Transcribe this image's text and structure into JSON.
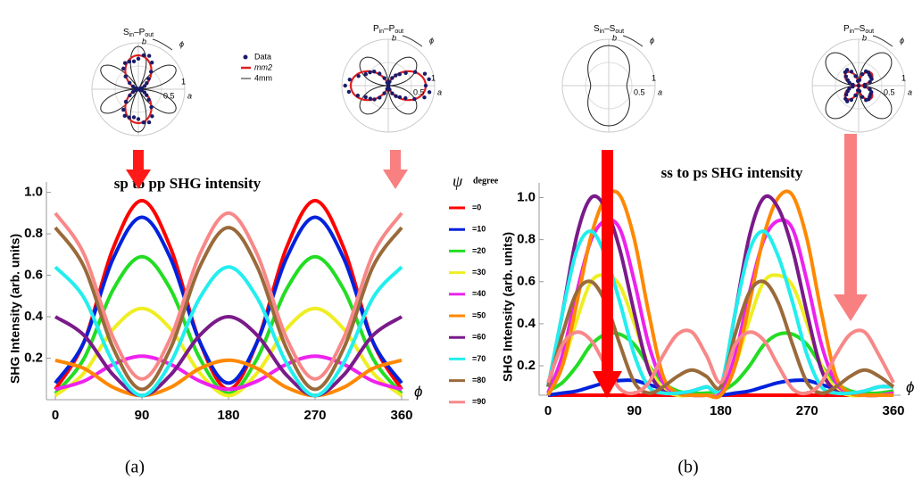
{
  "chart_data": [
    {
      "type": "line",
      "title": "sp to pp SHG intensity",
      "y_label": "SHG Intensity  (arb. units)",
      "x_label": "ϕ",
      "panel_label": "(a)",
      "legend_title": "ψ",
      "legend_unit": "degree",
      "x": [
        0,
        30,
        60,
        90,
        120,
        150,
        180,
        210,
        240,
        270,
        300,
        330,
        360
      ],
      "xlim": [
        0,
        360
      ],
      "xticks": [
        0,
        90,
        180,
        270,
        360
      ],
      "ylim": [
        0,
        1.05
      ],
      "yticks": [
        0.2,
        0.4,
        0.6,
        0.8,
        {
          "value": 1.0,
          "label": "1.0"
        }
      ],
      "series": [
        {
          "name": "=0",
          "color": "#ff0000",
          "values": [
            0.05,
            0.28,
            0.73,
            0.96,
            0.73,
            0.28,
            0.05,
            0.28,
            0.73,
            0.96,
            0.73,
            0.28,
            0.05
          ]
        },
        {
          "name": "=10",
          "color": "#0022dd",
          "values": [
            0.08,
            0.28,
            0.68,
            0.88,
            0.68,
            0.28,
            0.08,
            0.28,
            0.68,
            0.88,
            0.68,
            0.28,
            0.08
          ]
        },
        {
          "name": "=20",
          "color": "#22dd22",
          "values": [
            0.03,
            0.2,
            0.53,
            0.69,
            0.53,
            0.2,
            0.03,
            0.2,
            0.53,
            0.69,
            0.53,
            0.2,
            0.03
          ]
        },
        {
          "name": "=30",
          "color": "#eeee22",
          "values": [
            0.02,
            0.13,
            0.34,
            0.44,
            0.34,
            0.13,
            0.02,
            0.13,
            0.34,
            0.44,
            0.34,
            0.13,
            0.02
          ]
        },
        {
          "name": "=40",
          "color": "#ee22ee",
          "values": [
            0.05,
            0.09,
            0.17,
            0.21,
            0.17,
            0.09,
            0.05,
            0.09,
            0.17,
            0.21,
            0.17,
            0.09,
            0.05
          ]
        },
        {
          "name": "=50",
          "color": "#ff8800",
          "values": [
            0.19,
            0.15,
            0.06,
            0.02,
            0.06,
            0.15,
            0.19,
            0.15,
            0.06,
            0.02,
            0.06,
            0.15,
            0.19
          ]
        },
        {
          "name": "=60",
          "color": "#7a1a8a",
          "values": [
            0.4,
            0.31,
            0.12,
            0.02,
            0.12,
            0.31,
            0.4,
            0.31,
            0.12,
            0.02,
            0.12,
            0.31,
            0.4
          ]
        },
        {
          "name": "=70",
          "color": "#22eeee",
          "values": [
            0.64,
            0.49,
            0.18,
            0.02,
            0.18,
            0.49,
            0.64,
            0.49,
            0.18,
            0.02,
            0.18,
            0.49,
            0.64
          ]
        },
        {
          "name": "=80",
          "color": "#9a6a3a",
          "values": [
            0.83,
            0.64,
            0.25,
            0.05,
            0.25,
            0.64,
            0.83,
            0.64,
            0.25,
            0.05,
            0.25,
            0.64,
            0.83
          ]
        },
        {
          "name": "=90",
          "color": "#f88888",
          "values": [
            0.9,
            0.7,
            0.3,
            0.1,
            0.3,
            0.7,
            0.9,
            0.7,
            0.3,
            0.1,
            0.3,
            0.7,
            0.9
          ]
        }
      ]
    },
    {
      "type": "line",
      "title": "ss to ps SHG intensity",
      "y_label": "SHG Intensity  (arb. units)",
      "x_label": "ϕ",
      "panel_label": "(b)",
      "x": [
        0,
        15,
        30,
        45,
        60,
        75,
        90,
        105,
        120,
        135,
        150,
        165,
        180,
        195,
        210,
        225,
        240,
        255,
        270,
        285,
        300,
        315,
        330,
        345,
        360
      ],
      "xlim": [
        0,
        360
      ],
      "xticks": [
        0,
        90,
        180,
        270,
        360
      ],
      "ylim": [
        0.06,
        1.07
      ],
      "yticks": [
        0.2,
        0.4,
        0.6,
        0.8,
        {
          "value": 1.0,
          "label": "1.0"
        }
      ],
      "series": [
        {
          "color": "#ff0000",
          "values": [
            0.06,
            0.06,
            0.06,
            0.06,
            0.06,
            0.06,
            0.06,
            0.06,
            0.06,
            0.06,
            0.06,
            0.06,
            0.06,
            0.06,
            0.06,
            0.06,
            0.06,
            0.06,
            0.06,
            0.06,
            0.06,
            0.06,
            0.06,
            0.06,
            0.06
          ]
        },
        {
          "color": "#0022dd",
          "values": [
            0.06,
            0.07,
            0.08,
            0.1,
            0.12,
            0.13,
            0.13,
            0.11,
            0.09,
            0.07,
            0.06,
            0.06,
            0.06,
            0.07,
            0.08,
            0.1,
            0.12,
            0.13,
            0.13,
            0.11,
            0.09,
            0.07,
            0.06,
            0.06,
            0.06
          ]
        },
        {
          "color": "#22dd22",
          "values": [
            0.08,
            0.12,
            0.2,
            0.3,
            0.35,
            0.35,
            0.3,
            0.2,
            0.12,
            0.08,
            0.07,
            0.07,
            0.08,
            0.12,
            0.2,
            0.3,
            0.35,
            0.35,
            0.3,
            0.2,
            0.12,
            0.08,
            0.07,
            0.07,
            0.08
          ]
        },
        {
          "color": "#eeee22",
          "values": [
            0.07,
            0.2,
            0.42,
            0.6,
            0.63,
            0.58,
            0.4,
            0.2,
            0.09,
            0.06,
            0.06,
            0.06,
            0.07,
            0.2,
            0.42,
            0.6,
            0.63,
            0.58,
            0.4,
            0.2,
            0.09,
            0.06,
            0.06,
            0.06,
            0.07
          ]
        },
        {
          "color": "#ee22ee",
          "values": [
            0.07,
            0.25,
            0.55,
            0.8,
            0.89,
            0.85,
            0.6,
            0.3,
            0.12,
            0.07,
            0.06,
            0.06,
            0.07,
            0.25,
            0.55,
            0.8,
            0.89,
            0.85,
            0.6,
            0.3,
            0.12,
            0.07,
            0.06,
            0.06,
            0.07
          ]
        },
        {
          "color": "#ff8800",
          "values": [
            0.06,
            0.2,
            0.5,
            0.82,
            1.0,
            1.01,
            0.8,
            0.45,
            0.15,
            0.07,
            0.06,
            0.06,
            0.06,
            0.2,
            0.5,
            0.82,
            1.0,
            1.01,
            0.8,
            0.45,
            0.15,
            0.07,
            0.06,
            0.06,
            0.06
          ]
        },
        {
          "color": "#7a1a8a",
          "values": [
            0.1,
            0.45,
            0.82,
            1.0,
            0.95,
            0.75,
            0.45,
            0.18,
            0.08,
            0.07,
            0.08,
            0.1,
            0.1,
            0.45,
            0.82,
            1.0,
            0.95,
            0.75,
            0.45,
            0.18,
            0.08,
            0.07,
            0.08,
            0.1,
            0.1
          ]
        },
        {
          "color": "#22eeee",
          "values": [
            0.1,
            0.45,
            0.75,
            0.84,
            0.72,
            0.5,
            0.25,
            0.1,
            0.07,
            0.07,
            0.08,
            0.1,
            0.1,
            0.45,
            0.75,
            0.84,
            0.72,
            0.5,
            0.25,
            0.1,
            0.07,
            0.07,
            0.08,
            0.1,
            0.1
          ]
        },
        {
          "color": "#9a6a3a",
          "values": [
            0.1,
            0.35,
            0.55,
            0.6,
            0.5,
            0.3,
            0.12,
            0.07,
            0.1,
            0.15,
            0.18,
            0.15,
            0.1,
            0.35,
            0.55,
            0.6,
            0.5,
            0.3,
            0.12,
            0.07,
            0.1,
            0.15,
            0.18,
            0.15,
            0.1
          ]
        },
        {
          "color": "#f88888",
          "values": [
            0.12,
            0.3,
            0.36,
            0.32,
            0.2,
            0.09,
            0.07,
            0.12,
            0.25,
            0.35,
            0.36,
            0.25,
            0.12,
            0.3,
            0.36,
            0.32,
            0.2,
            0.09,
            0.07,
            0.12,
            0.25,
            0.35,
            0.36,
            0.25,
            0.12
          ]
        }
      ]
    }
  ],
  "insets": [
    {
      "title": [
        "S",
        "in",
        "–P",
        "out"
      ],
      "b": "b",
      "a": "a",
      "phi": "ϕ",
      "one": "1",
      "half": "0.5",
      "legend": {
        "data": "Data",
        "mm2": "mm2",
        "4mm": "4mm"
      }
    },
    {
      "title": [
        "P",
        "in",
        "–P",
        "out"
      ],
      "b": "b",
      "a": "a",
      "phi": "ϕ",
      "one": "1",
      "half": "0.5"
    },
    {
      "title": [
        "S",
        "in",
        "–S",
        "out"
      ],
      "b": "b",
      "a": "a",
      "phi": "ϕ",
      "one": "1",
      "half": "0.5"
    },
    {
      "title": [
        "P",
        "in",
        "–S",
        "out"
      ],
      "b": "b",
      "a": "a",
      "phi": "ϕ",
      "one": "1",
      "half": "0.5"
    }
  ]
}
